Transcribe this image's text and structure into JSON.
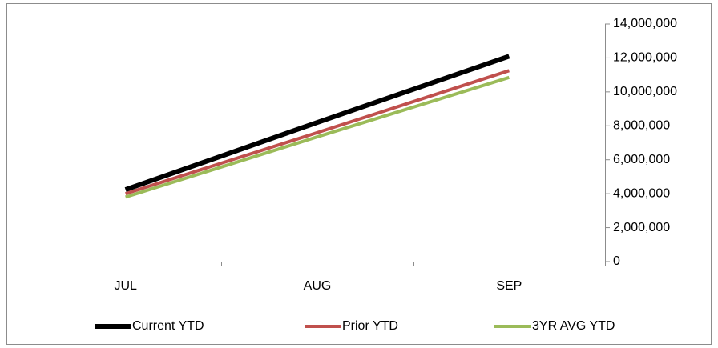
{
  "chart_data": {
    "type": "line",
    "categories": [
      "JUL",
      "AUG",
      "SEP"
    ],
    "series": [
      {
        "name": "Current YTD",
        "color": "#000000",
        "values": [
          4240000,
          8200000,
          12100000
        ]
      },
      {
        "name": "Prior YTD",
        "color": "#c0504d",
        "values": [
          4000000,
          7600000,
          11250000
        ]
      },
      {
        "name": "3YR AVG YTD",
        "color": "#9bbb59",
        "values": [
          3800000,
          7350000,
          10850000
        ]
      }
    ],
    "ylim": [
      0,
      14000000
    ],
    "yticks": [
      0,
      {
        "value": 2000000,
        "label": "2,000,000"
      },
      {
        "value": 4000000,
        "label": "4,000,000"
      },
      {
        "value": 6000000,
        "label": "6,000,000"
      },
      {
        "value": 8000000,
        "label": "8,000,000"
      },
      {
        "value": 10000000,
        "label": "10,000,000"
      },
      {
        "value": 12000000,
        "label": "12,000,000"
      },
      {
        "value": 14000000,
        "label": "14,000,000"
      }
    ],
    "legend": "bottom"
  }
}
